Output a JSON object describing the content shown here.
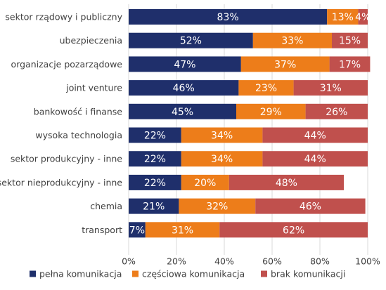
{
  "chart_data": {
    "type": "bar",
    "orientation": "horizontal",
    "stacked": true,
    "categories": [
      "sektor rządowy i publiczny",
      "ubezpieczenia",
      "organizacje pozarządowe",
      "joint venture",
      "bankowość i finanse",
      "wysoka technologia",
      "sektor produkcyjny - inne",
      "sektor nieprodukcyjny - inne",
      "chemia",
      "transport"
    ],
    "series": [
      {
        "name": "pełna komunikacja",
        "color": "#1f2f6b",
        "values": [
          83,
          52,
          47,
          46,
          45,
          22,
          22,
          22,
          21,
          7
        ]
      },
      {
        "name": "częściowa komunikacja",
        "color": "#ed7d1a",
        "values": [
          13,
          33,
          37,
          23,
          29,
          34,
          34,
          20,
          32,
          31
        ]
      },
      {
        "name": "brak komunikacji",
        "color": "#c0504d",
        "values": [
          4,
          15,
          17,
          31,
          26,
          44,
          44,
          48,
          46,
          62
        ]
      }
    ],
    "value_labels": [
      [
        "83%",
        "13%",
        "4%"
      ],
      [
        "52%",
        "33%",
        "15%"
      ],
      [
        "47%",
        "37%",
        "17%"
      ],
      [
        "46%",
        "23%",
        "31%"
      ],
      [
        "45%",
        "29%",
        "26%"
      ],
      [
        "22%",
        "34%",
        "44%"
      ],
      [
        "22%",
        "34%",
        "44%"
      ],
      [
        "22%",
        "20%",
        "48%"
      ],
      [
        "21%",
        "32%",
        "46%"
      ],
      [
        "7%",
        "31%",
        "62%"
      ]
    ],
    "x_ticks": [
      "0%",
      "20%",
      "40%",
      "60%",
      "80%",
      "100%"
    ],
    "xlim": [
      0,
      100
    ],
    "grid": "vertical",
    "legend_position": "bottom",
    "title": "",
    "xlabel": "",
    "ylabel": ""
  }
}
